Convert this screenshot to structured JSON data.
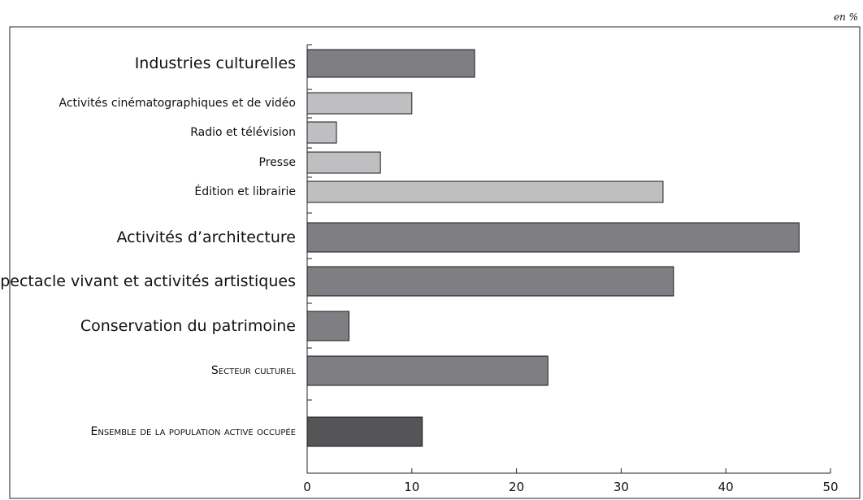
{
  "unit_label": "en %",
  "chart_data": {
    "type": "bar",
    "orientation": "horizontal",
    "categories": [
      "Industries culturelles",
      "Activités cinématographiques et de vidéo",
      "Radio et télévision",
      "Presse",
      "Édition et librairie",
      "Activités d’architecture",
      "Spectacle vivant et activités artistiques",
      "Conservation du patrimoine",
      "Secteur culturel",
      "Ensemble de la population active occupée"
    ],
    "values": [
      16,
      10,
      2.8,
      7,
      34,
      47,
      35,
      4,
      23,
      11
    ],
    "bar_colors": [
      "#7f7f83",
      "#bfbfc2",
      "#bfbfc2",
      "#bfbfc2",
      "#bfbfc2",
      "#7f7f83",
      "#7f7f83",
      "#7f7f83",
      "#7f7f83",
      "#555558"
    ],
    "xlim": [
      0,
      50
    ],
    "xticks": [
      0,
      10,
      20,
      30,
      40,
      50
    ],
    "grid": false,
    "xlabel": "",
    "ylabel": ""
  }
}
